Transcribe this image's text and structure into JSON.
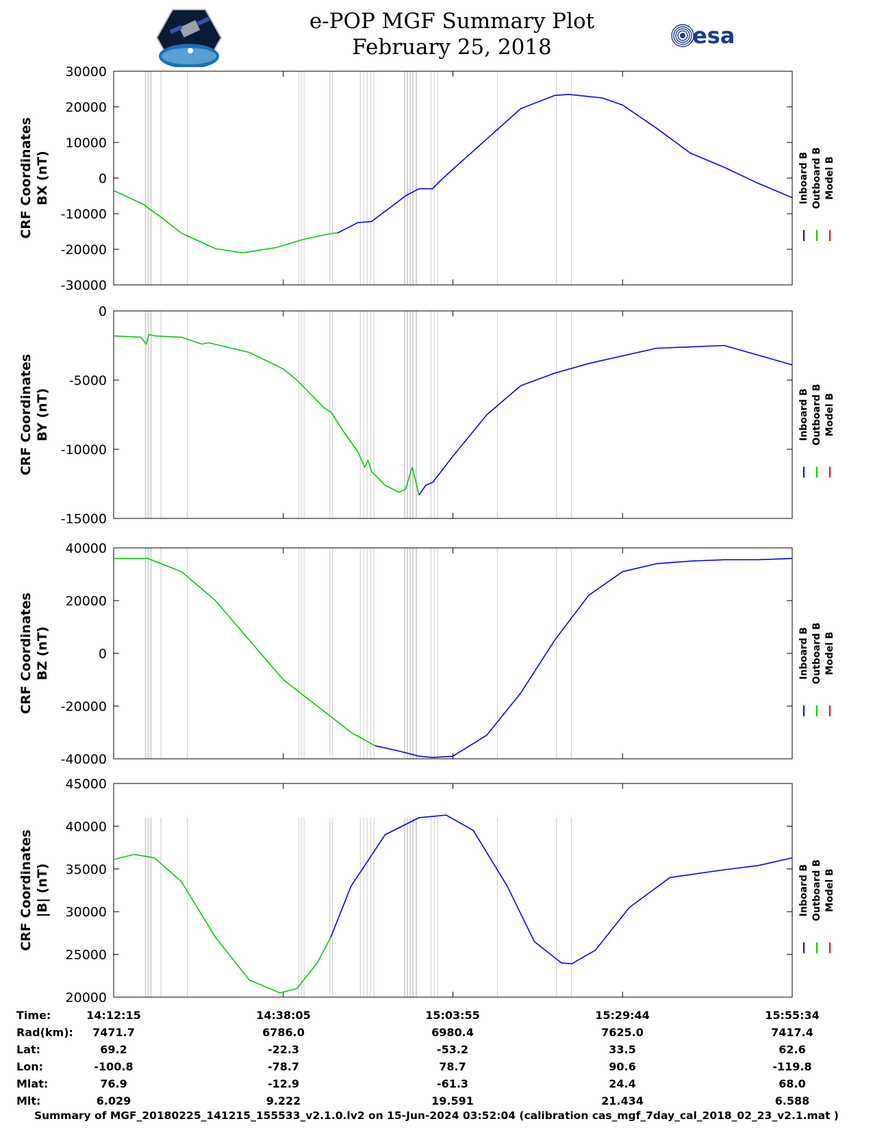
{
  "title": {
    "line1": "e-POP MGF Summary Plot",
    "line2": "February 25, 2018"
  },
  "logos": {
    "left": "cassiope-mission-logo",
    "right": "esa"
  },
  "colors": {
    "inboard": "#0000ff",
    "outboard": "#00cc00",
    "model": "#ff0000",
    "shading": "#d3d3d3"
  },
  "chart_data": {
    "type": "line",
    "x_ticks": [
      "14:12:15",
      "14:38:05",
      "15:03:55",
      "15:29:44",
      "15:55:34"
    ],
    "x_tick_fractions": [
      0,
      0.25,
      0.5,
      0.75,
      1
    ],
    "legend": [
      "Inboard B",
      "Outboard B",
      "Model B"
    ],
    "shaded_intervals": [
      [
        0.046,
        0.048
      ],
      [
        0.05,
        0.052
      ],
      [
        0.054,
        0.056
      ],
      [
        0.069,
        0.07
      ],
      [
        0.108,
        0.109
      ],
      [
        0.272,
        0.273
      ],
      [
        0.276,
        0.277
      ],
      [
        0.28,
        0.281
      ],
      [
        0.318,
        0.319
      ],
      [
        0.322,
        0.323
      ],
      [
        0.363,
        0.364
      ],
      [
        0.368,
        0.369
      ],
      [
        0.373,
        0.374
      ],
      [
        0.378,
        0.379
      ],
      [
        0.383,
        0.384
      ],
      [
        0.428,
        0.43
      ],
      [
        0.432,
        0.434
      ],
      [
        0.436,
        0.438
      ],
      [
        0.44,
        0.442
      ],
      [
        0.445,
        0.447
      ],
      [
        0.467,
        0.468
      ],
      [
        0.472,
        0.473
      ],
      [
        0.477,
        0.478
      ],
      [
        0.565,
        0.566
      ],
      [
        0.652,
        0.653
      ],
      [
        0.674,
        0.675
      ]
    ],
    "panels": [
      {
        "ylabel_line1": "CRF Coordinates",
        "ylabel_line2": "BX (nT)",
        "ylim": [
          -30000,
          30000
        ],
        "yticks": [
          "30000",
          "20000",
          "10000",
          "0",
          "-10000",
          "-20000",
          "-30000"
        ],
        "ytick_values": [
          30000,
          20000,
          10000,
          0,
          -10000,
          -20000,
          -30000
        ],
        "switch_x": 0.33,
        "x": [
          0,
          0.045,
          0.05,
          0.07,
          0.1,
          0.15,
          0.19,
          0.24,
          0.28,
          0.32,
          0.33,
          0.36,
          0.38,
          0.42,
          0.43,
          0.45,
          0.47,
          0.48,
          0.5,
          0.55,
          0.6,
          0.65,
          0.67,
          0.72,
          0.75,
          0.8,
          0.85,
          0.9,
          0.95,
          1.0
        ],
        "y": [
          -3500,
          -7500,
          -8300,
          -11000,
          -15500,
          -19800,
          -21000,
          -19500,
          -17200,
          -15600,
          -15400,
          -12500,
          -12200,
          -6500,
          -5000,
          -3000,
          -3000,
          -1000,
          2500,
          11000,
          19500,
          23200,
          23500,
          22500,
          20500,
          14000,
          7000,
          3000,
          -1500,
          -5500
        ]
      },
      {
        "ylabel_line1": "CRF Coordinates",
        "ylabel_line2": "BY (nT)",
        "ylim": [
          -15000,
          0
        ],
        "yticks": [
          "0",
          "-5000",
          "-10000",
          "-15000"
        ],
        "ytick_values": [
          0,
          -5000,
          -10000,
          -15000
        ],
        "switch_x": 0.45,
        "x": [
          0,
          0.04,
          0.048,
          0.052,
          0.06,
          0.1,
          0.13,
          0.14,
          0.2,
          0.25,
          0.27,
          0.31,
          0.32,
          0.34,
          0.36,
          0.37,
          0.375,
          0.38,
          0.4,
          0.42,
          0.43,
          0.44,
          0.45,
          0.46,
          0.47,
          0.5,
          0.55,
          0.6,
          0.65,
          0.7,
          0.8,
          0.9,
          1.0
        ],
        "y": [
          -1800,
          -1900,
          -2400,
          -1700,
          -1800,
          -1900,
          -2400,
          -2300,
          -3000,
          -4200,
          -5000,
          -7000,
          -7300,
          -8800,
          -10200,
          -11300,
          -10800,
          -11600,
          -12600,
          -13100,
          -12900,
          -11300,
          -13300,
          -12600,
          -12400,
          -10500,
          -7500,
          -5400,
          -4500,
          -3800,
          -2700,
          -2500,
          -3900
        ]
      },
      {
        "ylabel_line1": "CRF Coordinates",
        "ylabel_line2": "BZ (nT)",
        "ylim": [
          -40000,
          40000
        ],
        "yticks": [
          "40000",
          "20000",
          "0",
          "-20000",
          "-40000"
        ],
        "ytick_values": [
          40000,
          20000,
          0,
          -20000,
          -40000
        ],
        "switch_x": 0.385,
        "x": [
          0,
          0.05,
          0.1,
          0.15,
          0.2,
          0.25,
          0.3,
          0.35,
          0.385,
          0.42,
          0.45,
          0.47,
          0.5,
          0.55,
          0.6,
          0.65,
          0.7,
          0.75,
          0.8,
          0.85,
          0.9,
          0.95,
          1.0
        ],
        "y": [
          36000,
          36000,
          31000,
          20000,
          5000,
          -10000,
          -20000,
          -30000,
          -35000,
          -37000,
          -39000,
          -39500,
          -39000,
          -31000,
          -15000,
          5000,
          22000,
          31000,
          34000,
          35000,
          35500,
          35500,
          36000
        ],
        "bump_note": "descending green to blue"
      },
      {
        "ylabel_line1": "CRF Coordinates",
        "ylabel_line2": "|B| (nT)",
        "ylim": [
          20000,
          45000
        ],
        "yticks": [
          "45000",
          "40000",
          "35000",
          "30000",
          "25000",
          "20000"
        ],
        "ytick_values": [
          45000,
          40000,
          35000,
          30000,
          25000,
          20000
        ],
        "switch_x": 0.32,
        "x": [
          0,
          0.03,
          0.06,
          0.1,
          0.15,
          0.2,
          0.245,
          0.27,
          0.3,
          0.32,
          0.35,
          0.4,
          0.45,
          0.49,
          0.53,
          0.58,
          0.62,
          0.66,
          0.675,
          0.71,
          0.76,
          0.82,
          0.9,
          0.95,
          1.0
        ],
        "y": [
          36100,
          36700,
          36300,
          33500,
          27000,
          22000,
          20500,
          21000,
          24000,
          27000,
          33000,
          39000,
          41000,
          41300,
          39500,
          33000,
          26500,
          24000,
          23900,
          25500,
          30500,
          34000,
          34900,
          35400,
          36300
        ]
      }
    ]
  },
  "ephemeris": {
    "row_labels": [
      "Time:",
      "Rad(km):",
      "Lat:",
      "Lon:",
      "Mlat:",
      "Mlt:"
    ],
    "rows": [
      [
        "14:12:15",
        "14:38:05",
        "15:03:55",
        "15:29:44",
        "15:55:34"
      ],
      [
        "7471.7",
        "6786.0",
        "6980.4",
        "7625.0",
        "7417.4"
      ],
      [
        "69.2",
        "-22.3",
        "-53.2",
        "33.5",
        "62.6"
      ],
      [
        "-100.8",
        "-78.7",
        "78.7",
        "90.6",
        "-119.8"
      ],
      [
        "76.9",
        "-12.9",
        "-61.3",
        "24.4",
        "68.0"
      ],
      [
        "6.029",
        "9.222",
        "19.591",
        "21.434",
        "6.588"
      ]
    ]
  },
  "footer": "Summary of MGF_20180225_141215_155533_v2.1.0.lv2 on 15-Jun-2024 03:52:04 (calibration cas_mgf_7day_cal_2018_02_23_v2.1.mat )"
}
